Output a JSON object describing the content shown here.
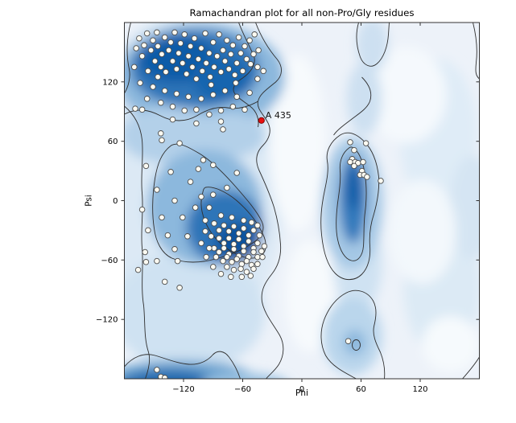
{
  "title": "Ramachandran plot for all non-Pro/Gly residues",
  "chart_data": {
    "type": "scatter",
    "title": "Ramachandran plot for all non-Pro/Gly residues",
    "xlabel": "Phi",
    "ylabel": "Psi",
    "xlim": [
      -180,
      180
    ],
    "ylim": [
      -180,
      180
    ],
    "xticks": [
      -120,
      -60,
      0,
      60,
      120
    ],
    "yticks": [
      -120,
      -60,
      0,
      60,
      120
    ],
    "grid": false,
    "legend": "none",
    "background_style": "blue kernel-density (Blues colormap) with black contour lines over favored/allowed Ramachandran regions",
    "colors": {
      "density_darkest": "#0d539e",
      "density_dark": "#2d74b8",
      "density_medium": "#8cb8dd",
      "density_light": "#dce9f5",
      "plot_background": "#edf2f9",
      "contour": "#2f2f2f",
      "point_fill": "#fbfaf2",
      "point_stroke": "#4d4d4d",
      "highlight_fill": "#e81010",
      "highlight_stroke": "#7a0000",
      "frame": "#333333"
    },
    "highlighted": {
      "label": "A 435",
      "phi": -41,
      "psi": 81
    },
    "residues": [
      [
        -170,
        135
      ],
      [
        -168,
        154
      ],
      [
        -165,
        164
      ],
      [
        -162,
        146
      ],
      [
        -160,
        157
      ],
      [
        -157,
        169
      ],
      [
        -156,
        131
      ],
      [
        -153,
        152
      ],
      [
        -151,
        162
      ],
      [
        -149,
        141
      ],
      [
        -147,
        170
      ],
      [
        -146,
        156
      ],
      [
        -143,
        135
      ],
      [
        -142,
        148
      ],
      [
        -139,
        165
      ],
      [
        -138,
        130
      ],
      [
        -135,
        152
      ],
      [
        -133,
        160
      ],
      [
        -131,
        141
      ],
      [
        -129,
        170
      ],
      [
        -127,
        133
      ],
      [
        -125,
        149
      ],
      [
        -123,
        159
      ],
      [
        -121,
        139
      ],
      [
        -119,
        168
      ],
      [
        -117,
        128
      ],
      [
        -115,
        146
      ],
      [
        -113,
        156
      ],
      [
        -111,
        135
      ],
      [
        -109,
        164
      ],
      [
        -107,
        123
      ],
      [
        -105,
        143
      ],
      [
        -102,
        154
      ],
      [
        -101,
        131
      ],
      [
        -98,
        169
      ],
      [
        -97,
        139
      ],
      [
        -94,
        149
      ],
      [
        -93,
        125
      ],
      [
        -90,
        160
      ],
      [
        -89,
        135
      ],
      [
        -86,
        146
      ],
      [
        -84,
        168
      ],
      [
        -82,
        130
      ],
      [
        -80,
        152
      ],
      [
        -78,
        141
      ],
      [
        -76,
        162
      ],
      [
        -74,
        133
      ],
      [
        -72,
        148
      ],
      [
        -70,
        157
      ],
      [
        -68,
        127
      ],
      [
        -66,
        139
      ],
      [
        -64,
        165
      ],
      [
        -62,
        149
      ],
      [
        -60,
        131
      ],
      [
        -58,
        156
      ],
      [
        -56,
        143
      ],
      [
        -53,
        162
      ],
      [
        -52,
        138
      ],
      [
        -49,
        148
      ],
      [
        -48,
        168
      ],
      [
        -45,
        135
      ],
      [
        -44,
        152
      ],
      [
        -164,
        119
      ],
      [
        -151,
        115
      ],
      [
        -139,
        111
      ],
      [
        -127,
        108
      ],
      [
        -115,
        105
      ],
      [
        -102,
        103
      ],
      [
        -90,
        107
      ],
      [
        -78,
        111
      ],
      [
        -66,
        105
      ],
      [
        -53,
        109
      ],
      [
        -157,
        103
      ],
      [
        -143,
        99
      ],
      [
        -131,
        95
      ],
      [
        -119,
        91
      ],
      [
        -107,
        92
      ],
      [
        -94,
        87
      ],
      [
        -82,
        91
      ],
      [
        -70,
        95
      ],
      [
        -58,
        92
      ],
      [
        -131,
        82
      ],
      [
        -107,
        78
      ],
      [
        -82,
        80
      ],
      [
        -146,
        125
      ],
      [
        -92,
        117
      ],
      [
        -67,
        119
      ],
      [
        -162,
        92
      ],
      [
        -45,
        123
      ],
      [
        -39,
        131
      ],
      [
        -169,
        93
      ],
      [
        -143,
        68
      ],
      [
        -142,
        61
      ],
      [
        -124,
        58
      ],
      [
        -90,
        36
      ],
      [
        -80,
        72
      ],
      [
        -100,
        41
      ],
      [
        -66,
        28
      ],
      [
        -76,
        13
      ],
      [
        -158,
        35
      ],
      [
        -133,
        29
      ],
      [
        -147,
        11
      ],
      [
        -129,
        0
      ],
      [
        -162,
        -9
      ],
      [
        -142,
        -17
      ],
      [
        -156,
        -30
      ],
      [
        -136,
        -35
      ],
      [
        -159,
        -52
      ],
      [
        -129,
        -49
      ],
      [
        -116,
        -36
      ],
      [
        -121,
        -17
      ],
      [
        -108,
        -7
      ],
      [
        -102,
        4
      ],
      [
        -113,
        19
      ],
      [
        -105,
        32
      ],
      [
        -94,
        -7
      ],
      [
        -90,
        6
      ],
      [
        -98,
        -20
      ],
      [
        -158,
        -62
      ],
      [
        -166,
        -70
      ],
      [
        -147,
        -61
      ],
      [
        -126,
        -61
      ],
      [
        -124,
        -88
      ],
      [
        -139,
        -82
      ],
      [
        -89,
        -23
      ],
      [
        -84,
        -30
      ],
      [
        -79,
        -25
      ],
      [
        -74,
        -31
      ],
      [
        -69,
        -26
      ],
      [
        -64,
        -33
      ],
      [
        -59,
        -28
      ],
      [
        -54,
        -35
      ],
      [
        -49,
        -30
      ],
      [
        -84,
        -38
      ],
      [
        -79,
        -43
      ],
      [
        -74,
        -38
      ],
      [
        -69,
        -44
      ],
      [
        -64,
        -39
      ],
      [
        -59,
        -46
      ],
      [
        -54,
        -41
      ],
      [
        -49,
        -48
      ],
      [
        -45,
        -43
      ],
      [
        -89,
        -48
      ],
      [
        -84,
        -52
      ],
      [
        -79,
        -48
      ],
      [
        -74,
        -54
      ],
      [
        -69,
        -49
      ],
      [
        -64,
        -56
      ],
      [
        -59,
        -51
      ],
      [
        -54,
        -57
      ],
      [
        -49,
        -52
      ],
      [
        -45,
        -57
      ],
      [
        -80,
        -61
      ],
      [
        -76,
        -57
      ],
      [
        -71,
        -62
      ],
      [
        -66,
        -59
      ],
      [
        -61,
        -64
      ],
      [
        -56,
        -61
      ],
      [
        -51,
        -65
      ],
      [
        -76,
        -67
      ],
      [
        -69,
        -70
      ],
      [
        -62,
        -69
      ],
      [
        -56,
        -72
      ],
      [
        -49,
        -69
      ],
      [
        -87,
        -57
      ],
      [
        -92,
        -36
      ],
      [
        -94,
        -48
      ],
      [
        -43,
        -35
      ],
      [
        -41,
        -51
      ],
      [
        -59,
        -20
      ],
      [
        -71,
        -17
      ],
      [
        -82,
        -15
      ],
      [
        -51,
        -22
      ],
      [
        -45,
        -25
      ],
      [
        -98,
        -31
      ],
      [
        -102,
        -43
      ],
      [
        -97,
        -57
      ],
      [
        -90,
        -67
      ],
      [
        -82,
        -74
      ],
      [
        -72,
        -77
      ],
      [
        -61,
        -77
      ],
      [
        -52,
        -76
      ],
      [
        -45,
        -64
      ],
      [
        -40,
        -57
      ],
      [
        -38,
        -46
      ],
      [
        49,
        59
      ],
      [
        65,
        58
      ],
      [
        53,
        51
      ],
      [
        51,
        42
      ],
      [
        49,
        39
      ],
      [
        54,
        39
      ],
      [
        57,
        38
      ],
      [
        53,
        35
      ],
      [
        62,
        39
      ],
      [
        61,
        30
      ],
      [
        59,
        26
      ],
      [
        63,
        26
      ],
      [
        66,
        24
      ],
      [
        80,
        20
      ],
      [
        47,
        -142
      ],
      [
        -147,
        -171
      ],
      [
        -143,
        -178
      ],
      [
        -139,
        -179
      ]
    ]
  }
}
